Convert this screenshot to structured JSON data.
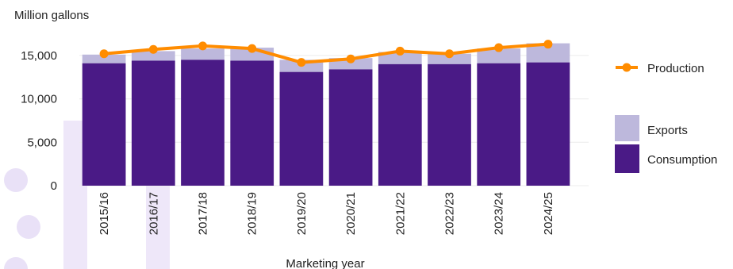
{
  "chart_data": {
    "type": "bar",
    "stacked": true,
    "ylabel": "Million gallons",
    "xlabel": "Marketing year",
    "categories": [
      "2015/16",
      "2016/17",
      "2017/18",
      "2018/19",
      "2019/20",
      "2020/21",
      "2021/22",
      "2022/23",
      "2023/24",
      "2024/25"
    ],
    "yticks": [
      0,
      5000,
      10000,
      15000
    ],
    "ytick_labels": [
      "0",
      "5,000",
      "10,000",
      "15,000"
    ],
    "ylim": [
      0,
      18000
    ],
    "grid": true,
    "legend_position": "right",
    "series": [
      {
        "name": "Consumption",
        "type": "bar",
        "color": "#4a1a86",
        "values": [
          14100,
          14400,
          14500,
          14400,
          13100,
          13400,
          14000,
          14000,
          14100,
          14200
        ]
      },
      {
        "name": "Exports",
        "type": "bar",
        "color": "#bdb8dc",
        "values": [
          1000,
          1100,
          1300,
          1500,
          1400,
          1300,
          1400,
          1200,
          1700,
          2200
        ]
      },
      {
        "name": "Production",
        "type": "line",
        "color": "#ff8c00",
        "values": [
          15200,
          15700,
          16100,
          15800,
          14200,
          14600,
          15500,
          15200,
          15900,
          16300
        ]
      }
    ]
  }
}
